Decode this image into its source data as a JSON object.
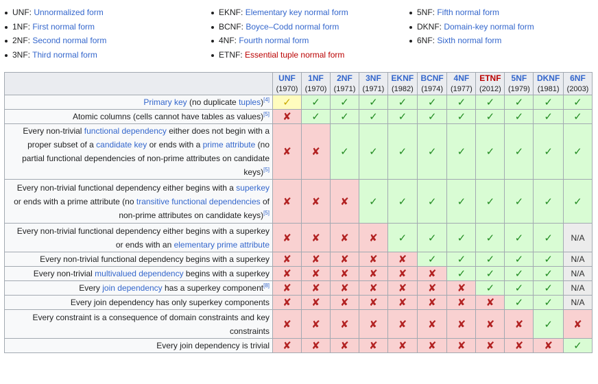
{
  "list_col1": [
    {
      "abbr": "UNF",
      "sep": ": ",
      "name": "Unnormalized form",
      "red": false
    },
    {
      "abbr": "1NF",
      "sep": ": ",
      "name": "First normal form",
      "red": false
    },
    {
      "abbr": "2NF",
      "sep": ": ",
      "name": "Second normal form",
      "red": false
    },
    {
      "abbr": "3NF",
      "sep": ": ",
      "name": "Third normal form",
      "red": false
    }
  ],
  "list_col2": [
    {
      "abbr": "EKNF",
      "sep": ": ",
      "name": "Elementary key normal form",
      "red": false
    },
    {
      "abbr": "BCNF",
      "sep": ": ",
      "name": "Boyce–Codd normal form",
      "red": false
    },
    {
      "abbr": "4NF",
      "sep": ": ",
      "name": "Fourth normal form",
      "red": false
    },
    {
      "abbr": "ETNF",
      "sep": ": ",
      "name": "Essential tuple normal form",
      "red": true
    }
  ],
  "list_col3": [
    {
      "abbr": "5NF",
      "sep": ": ",
      "name": "Fifth normal form",
      "red": false
    },
    {
      "abbr": "DKNF",
      "sep": ": ",
      "name": "Domain-key normal form",
      "red": false
    },
    {
      "abbr": "6NF",
      "sep": ": ",
      "name": "Sixth normal form",
      "red": false
    }
  ],
  "table": {
    "columns": [
      {
        "abbr": "UNF",
        "year": "(1970)",
        "red": false
      },
      {
        "abbr": "1NF",
        "year": "(1970)",
        "red": false
      },
      {
        "abbr": "2NF",
        "year": "(1971)",
        "red": false
      },
      {
        "abbr": "3NF",
        "year": "(1971)",
        "red": false
      },
      {
        "abbr": "EKNF",
        "year": "(1982)",
        "red": false
      },
      {
        "abbr": "BCNF",
        "year": "(1974)",
        "red": false
      },
      {
        "abbr": "4NF",
        "year": "(1977)",
        "red": false
      },
      {
        "abbr": "ETNF",
        "year": "(2012)",
        "red": true
      },
      {
        "abbr": "5NF",
        "year": "(1979)",
        "red": false
      },
      {
        "abbr": "DKNF",
        "year": "(1981)",
        "red": false
      },
      {
        "abbr": "6NF",
        "year": "(2003)",
        "red": false
      }
    ],
    "symbols": {
      "yes": "✓",
      "no": "✘",
      "part": "✓",
      "na": "N/A"
    },
    "rows": [
      {
        "criterion": [
          {
            "t": "Primary key",
            "link": true
          },
          {
            "t": " (no duplicate "
          },
          {
            "t": "tuples",
            "link": true
          },
          {
            "t": ")"
          },
          {
            "sup": "[4]"
          }
        ],
        "values": [
          "part",
          "yes",
          "yes",
          "yes",
          "yes",
          "yes",
          "yes",
          "yes",
          "yes",
          "yes",
          "yes"
        ]
      },
      {
        "criterion": [
          {
            "t": "Atomic columns (cells cannot have tables as values)"
          },
          {
            "sup": "[5]"
          }
        ],
        "values": [
          "no",
          "yes",
          "yes",
          "yes",
          "yes",
          "yes",
          "yes",
          "yes",
          "yes",
          "yes",
          "yes"
        ]
      },
      {
        "criterion": [
          {
            "t": "Every non-trivial "
          },
          {
            "t": "functional dependency",
            "link": true
          },
          {
            "t": " either does not begin with a proper subset of a "
          },
          {
            "t": "candidate key",
            "link": true
          },
          {
            "t": " or ends with a "
          },
          {
            "t": "prime attribute",
            "link": true
          },
          {
            "t": " (no partial functional dependencies of non-prime attributes on candidate keys)"
          },
          {
            "sup": "[5]"
          }
        ],
        "values": [
          "no",
          "no",
          "yes",
          "yes",
          "yes",
          "yes",
          "yes",
          "yes",
          "yes",
          "yes",
          "yes"
        ]
      },
      {
        "criterion": [
          {
            "t": "Every non-trivial functional dependency either begins with a "
          },
          {
            "t": "superkey",
            "link": true
          },
          {
            "t": " or ends with a prime attribute (no "
          },
          {
            "t": "transitive functional dependencies",
            "link": true
          },
          {
            "t": " of non-prime attributes on candidate keys)"
          },
          {
            "sup": "[5]"
          }
        ],
        "values": [
          "no",
          "no",
          "no",
          "yes",
          "yes",
          "yes",
          "yes",
          "yes",
          "yes",
          "yes",
          "yes"
        ]
      },
      {
        "criterion": [
          {
            "t": "Every non-trivial functional dependency either begins with a superkey or ends with an "
          },
          {
            "t": "elementary prime attribute",
            "link": true
          }
        ],
        "values": [
          "no",
          "no",
          "no",
          "no",
          "yes",
          "yes",
          "yes",
          "yes",
          "yes",
          "yes",
          "na"
        ]
      },
      {
        "criterion": [
          {
            "t": "Every non-trivial functional dependency begins with a superkey"
          }
        ],
        "values": [
          "no",
          "no",
          "no",
          "no",
          "no",
          "yes",
          "yes",
          "yes",
          "yes",
          "yes",
          "na"
        ]
      },
      {
        "criterion": [
          {
            "t": "Every non-trivial "
          },
          {
            "t": "multivalued dependency",
            "link": true
          },
          {
            "t": " begins with a superkey"
          }
        ],
        "values": [
          "no",
          "no",
          "no",
          "no",
          "no",
          "no",
          "yes",
          "yes",
          "yes",
          "yes",
          "na"
        ]
      },
      {
        "criterion": [
          {
            "t": "Every "
          },
          {
            "t": "join dependency",
            "link": true
          },
          {
            "t": " has a superkey component"
          },
          {
            "sup": "[8]"
          }
        ],
        "values": [
          "no",
          "no",
          "no",
          "no",
          "no",
          "no",
          "no",
          "yes",
          "yes",
          "yes",
          "na"
        ]
      },
      {
        "criterion": [
          {
            "t": "Every join dependency has only superkey components"
          }
        ],
        "values": [
          "no",
          "no",
          "no",
          "no",
          "no",
          "no",
          "no",
          "no",
          "yes",
          "yes",
          "na"
        ]
      },
      {
        "criterion": [
          {
            "t": "Every constraint is a consequence of domain constraints and key constraints"
          }
        ],
        "values": [
          "no",
          "no",
          "no",
          "no",
          "no",
          "no",
          "no",
          "no",
          "no",
          "yes",
          "no"
        ]
      },
      {
        "criterion": [
          {
            "t": "Every join dependency is trivial"
          }
        ],
        "values": [
          "no",
          "no",
          "no",
          "no",
          "no",
          "no",
          "no",
          "no",
          "no",
          "no",
          "yes"
        ]
      }
    ]
  }
}
